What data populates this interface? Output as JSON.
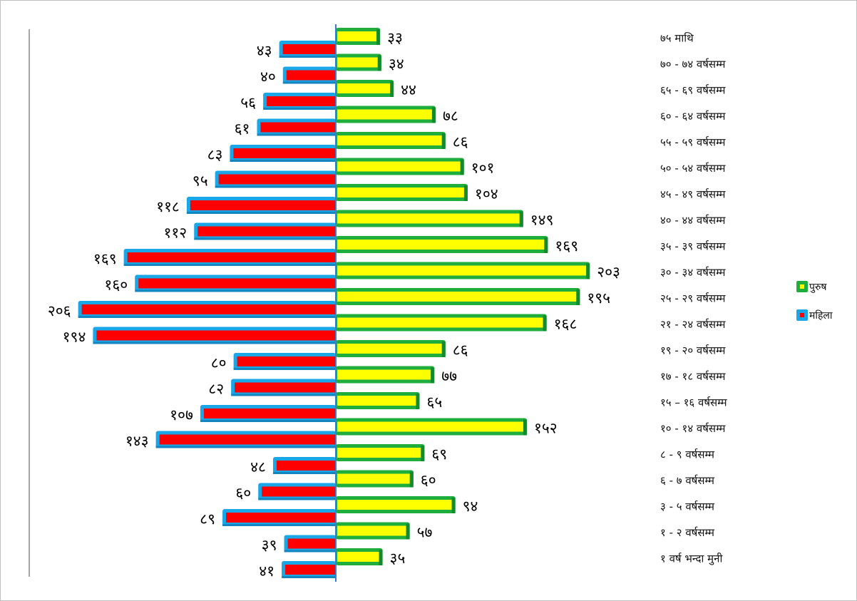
{
  "chart_data": {
    "type": "bar",
    "orientation": "horizontal",
    "layout": "population-pyramid",
    "categories": [
      "७५ माथि",
      "७० - ७४ वर्षसम्म",
      "६५ - ६९ वर्षसम्म",
      "६० - ६४ वर्षसम्म",
      "५५ - ५९ वर्षसम्म",
      "५० - ५४ वर्षसम्म",
      "४५ - ४९ वर्षसम्म",
      "४० - ४४ वर्षसम्म",
      "३५ - ३९ वर्षसम्म",
      "३० - ३४ वर्षसम्म",
      "२५ - २९ वर्षसम्म",
      "२१ - २४ वर्षसम्म",
      "१९ - २० वर्षसम्म",
      "१७ - १८ वर्षसम्म",
      "१५ – १६ वर्षसम्म",
      "१० - १४ वर्षसम्म",
      "८ - ९ वर्षसम्म",
      "६ - ७ वर्षसम्म",
      "३ - ५ वर्षसम्म",
      "१ - २ वर्षसम्म",
      "१ वर्ष भन्दा मुनी"
    ],
    "series": [
      {
        "name": "पुरुष",
        "color": "#ffff00",
        "border_color": "#1fae3c",
        "values": [
          33,
          34,
          44,
          78,
          86,
          101,
          104,
          149,
          169,
          203,
          195,
          168,
          86,
          77,
          65,
          152,
          69,
          60,
          94,
          57,
          35
        ],
        "labels": [
          "३३",
          "३४",
          "४४",
          "७८",
          "८६",
          "१०१",
          "१०४",
          "१४९",
          "१६९",
          "२०३",
          "१९५",
          "१६८",
          "८६",
          "७७",
          "६५",
          "१५२",
          "६९",
          "६०",
          "९४",
          "५७",
          "३५"
        ]
      },
      {
        "name": "महिला",
        "color": "#ff0000",
        "border_color": "#1aa7e8",
        "values": [
          43,
          40,
          56,
          61,
          83,
          95,
          118,
          112,
          169,
          160,
          206,
          194,
          80,
          82,
          107,
          143,
          48,
          60,
          89,
          39,
          41
        ],
        "labels": [
          "४३",
          "४०",
          "५६",
          "६१",
          "८३",
          "९५",
          "११८",
          "११२",
          "१६९",
          "१६०",
          "२०६",
          "१९४",
          "८०",
          "८२",
          "१०७",
          "१४३",
          "४८",
          "६०",
          "८९",
          "३९",
          "४१"
        ]
      }
    ],
    "legend_position": "right",
    "grid": false,
    "title": "",
    "xlabel": "",
    "ylabel": ""
  }
}
